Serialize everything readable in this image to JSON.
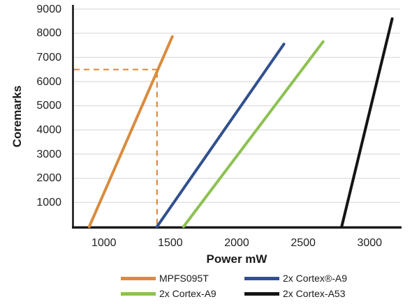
{
  "page": {
    "background": "#ffffff"
  },
  "chart_data": {
    "type": "line",
    "title": "",
    "xlabel": "Power mW",
    "ylabel": "Coremarks",
    "xlim": [
      770,
      3230
    ],
    "ylim": [
      0,
      9000
    ],
    "x_tick_values": [
      1000,
      1500,
      2000,
      2500,
      3000
    ],
    "y_tick_values": [
      1000,
      2000,
      3000,
      4000,
      5000,
      6000,
      7000,
      8000,
      9000
    ],
    "grid": "horizontal-only",
    "gridline_color": "#d9d9d9",
    "axis_color": "#161616",
    "tick_label_color": "#222222",
    "legend_position": "bottom-two-columns",
    "series": [
      {
        "name": "MPFS095T",
        "color": "#d98c3e",
        "points": [
          [
            890,
            0
          ],
          [
            1515,
            7860
          ]
        ]
      },
      {
        "name": "2x Cortex®-A9",
        "color": "#31508f",
        "points": [
          [
            1400,
            0
          ],
          [
            2355,
            7550
          ]
        ]
      },
      {
        "name": "2x Cortex-A9",
        "color": "#8dc152",
        "points": [
          [
            1600,
            0
          ],
          [
            2650,
            7650
          ]
        ]
      },
      {
        "name": "2x Cortex-A53",
        "color": "#141414",
        "points": [
          [
            2790,
            0
          ],
          [
            3170,
            8600
          ]
        ]
      }
    ],
    "annotation": {
      "type": "dashed-crosshair",
      "x": 1400,
      "y": 6500,
      "color": "#d98c3e",
      "dash": "8 6"
    }
  }
}
